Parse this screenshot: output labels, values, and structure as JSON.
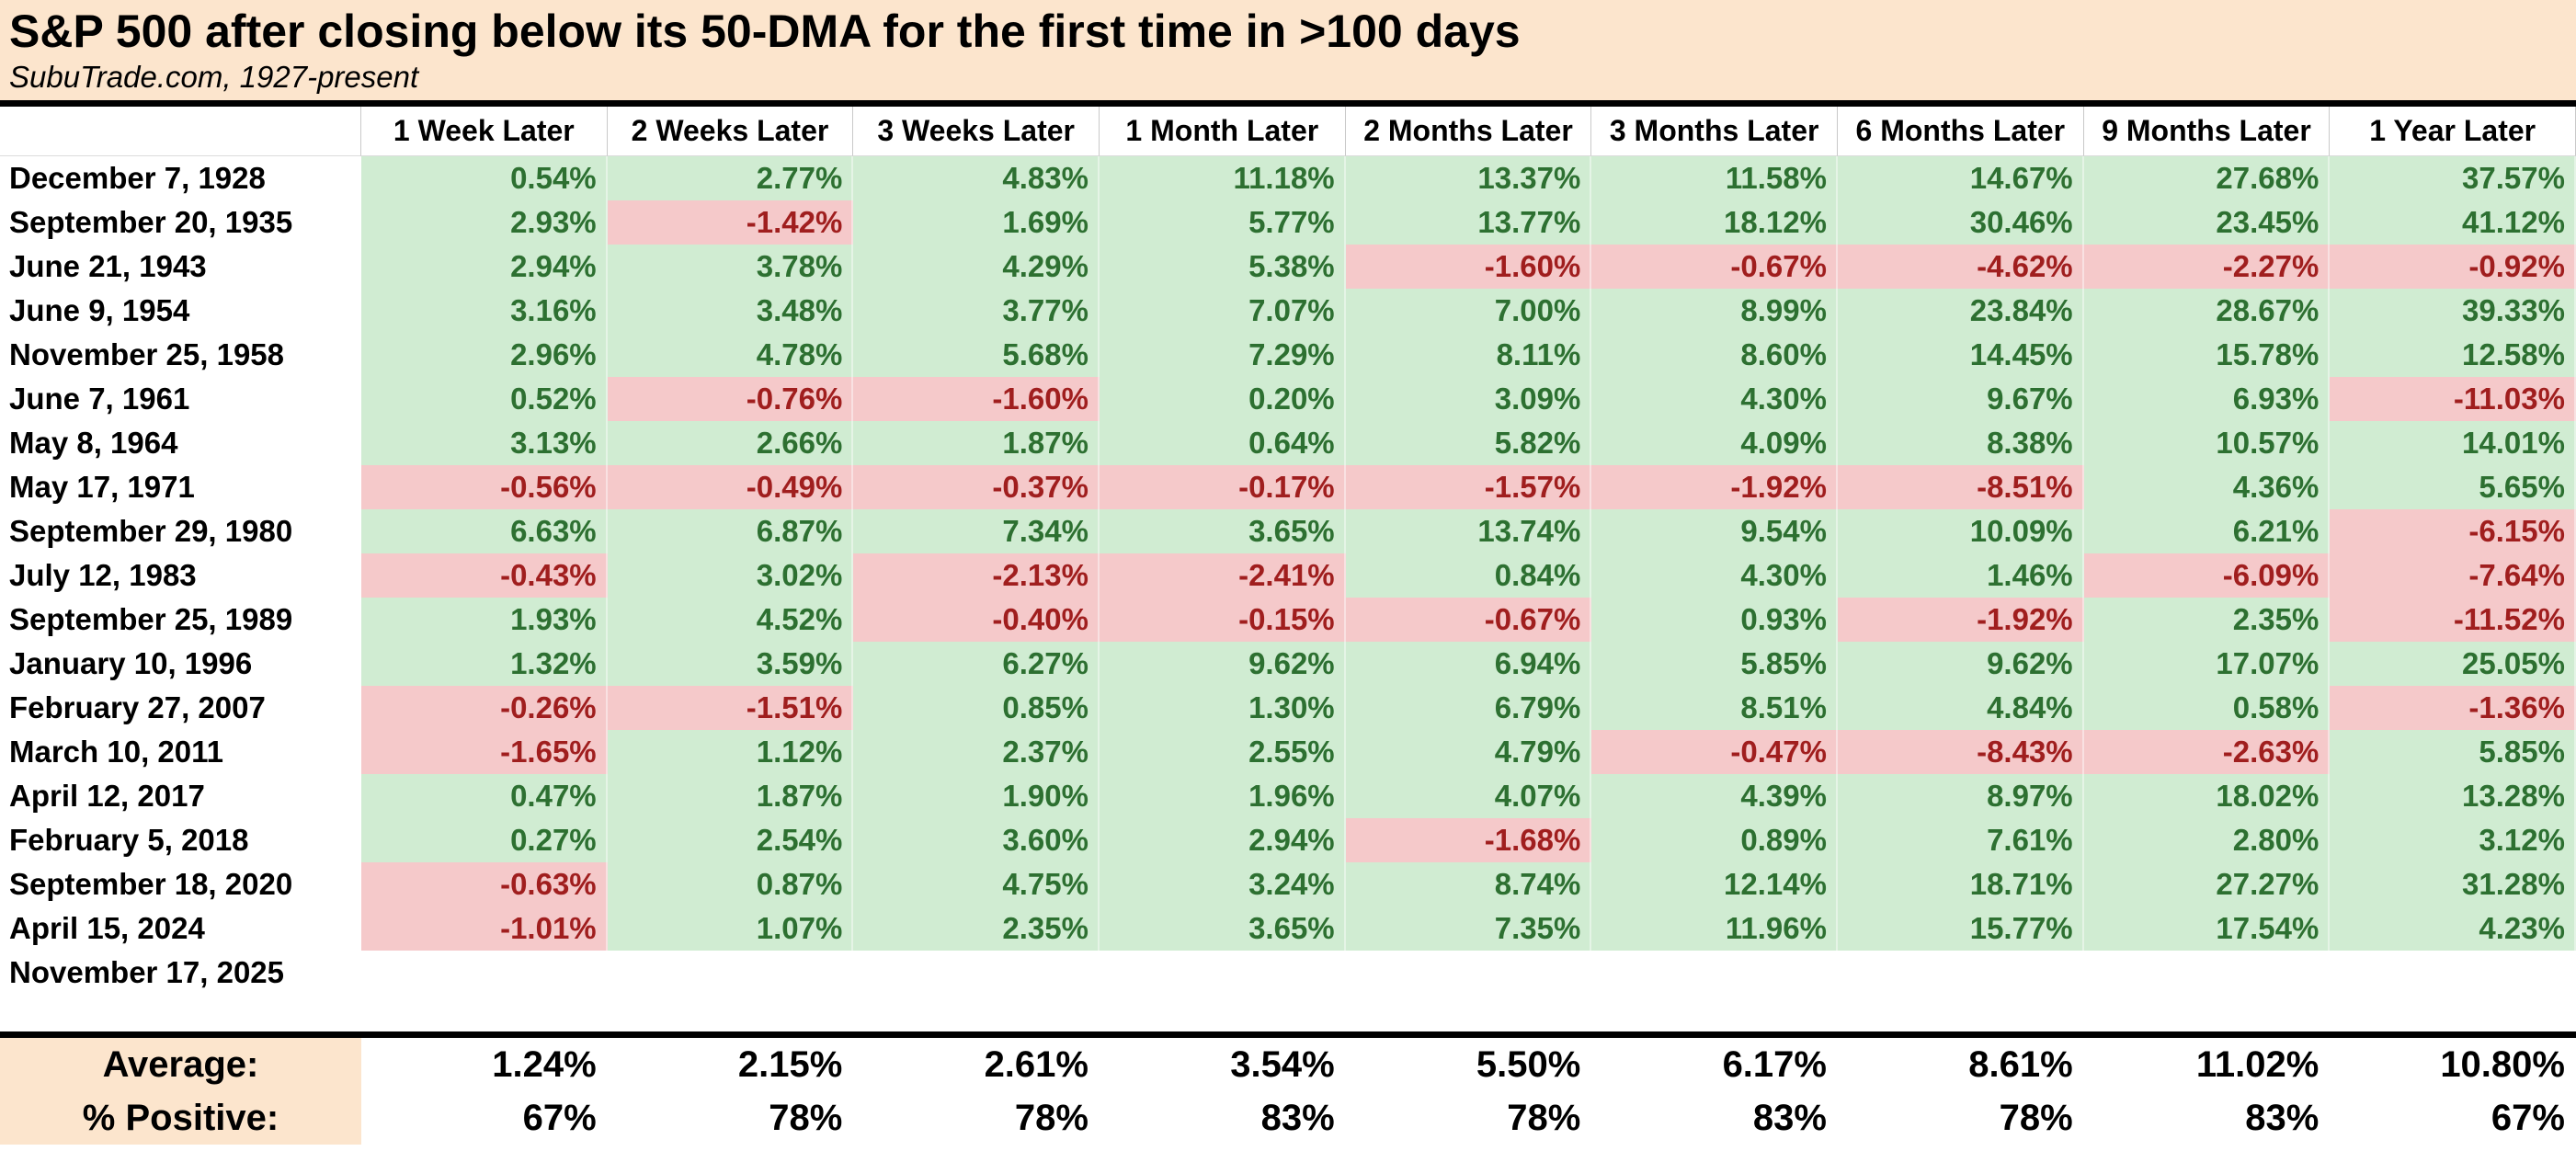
{
  "title": "S&P 500 after closing below its 50-DMA for the first time in >100 days",
  "subtitle": "SubuTrade.com, 1927-present",
  "colors": {
    "title_band_bg": "#fce5cd",
    "positive_bg": "#d0ecd2",
    "positive_text": "#2d7031",
    "negative_bg": "#f5c9ca",
    "negative_text": "#a01e1e",
    "summary_label_bg": "#fce5cd",
    "header_gridline": "#c9c9c9",
    "divider": "#000000"
  },
  "table": {
    "date_header": "",
    "columns": [
      "1 Week Later",
      "2 Weeks Later",
      "3 Weeks Later",
      "1 Month Later",
      "2 Months Later",
      "3 Months Later",
      "6 Months Later",
      "9 Months Later",
      "1 Year Later"
    ],
    "rows": [
      {
        "date": "December 7, 1928",
        "cells": [
          "0.54%",
          "2.77%",
          "4.83%",
          "11.18%",
          "13.37%",
          "11.58%",
          "14.67%",
          "27.68%",
          "37.57%"
        ]
      },
      {
        "date": "September 20, 1935",
        "cells": [
          "2.93%",
          "-1.42%",
          "1.69%",
          "5.77%",
          "13.77%",
          "18.12%",
          "30.46%",
          "23.45%",
          "41.12%"
        ]
      },
      {
        "date": "June 21, 1943",
        "cells": [
          "2.94%",
          "3.78%",
          "4.29%",
          "5.38%",
          "-1.60%",
          "-0.67%",
          "-4.62%",
          "-2.27%",
          "-0.92%"
        ]
      },
      {
        "date": "June 9, 1954",
        "cells": [
          "3.16%",
          "3.48%",
          "3.77%",
          "7.07%",
          "7.00%",
          "8.99%",
          "23.84%",
          "28.67%",
          "39.33%"
        ]
      },
      {
        "date": "November 25, 1958",
        "cells": [
          "2.96%",
          "4.78%",
          "5.68%",
          "7.29%",
          "8.11%",
          "8.60%",
          "14.45%",
          "15.78%",
          "12.58%"
        ]
      },
      {
        "date": "June 7, 1961",
        "cells": [
          "0.52%",
          "-0.76%",
          "-1.60%",
          "0.20%",
          "3.09%",
          "4.30%",
          "9.67%",
          "6.93%",
          "-11.03%"
        ]
      },
      {
        "date": "May 8, 1964",
        "cells": [
          "3.13%",
          "2.66%",
          "1.87%",
          "0.64%",
          "5.82%",
          "4.09%",
          "8.38%",
          "10.57%",
          "14.01%"
        ]
      },
      {
        "date": "May 17, 1971",
        "cells": [
          "-0.56%",
          "-0.49%",
          "-0.37%",
          "-0.17%",
          "-1.57%",
          "-1.92%",
          "-8.51%",
          "4.36%",
          "5.65%"
        ]
      },
      {
        "date": "September 29, 1980",
        "cells": [
          "6.63%",
          "6.87%",
          "7.34%",
          "3.65%",
          "13.74%",
          "9.54%",
          "10.09%",
          "6.21%",
          "-6.15%"
        ]
      },
      {
        "date": "July 12, 1983",
        "cells": [
          "-0.43%",
          "3.02%",
          "-2.13%",
          "-2.41%",
          "0.84%",
          "4.30%",
          "1.46%",
          "-6.09%",
          "-7.64%"
        ]
      },
      {
        "date": "September 25, 1989",
        "cells": [
          "1.93%",
          "4.52%",
          "-0.40%",
          "-0.15%",
          "-0.67%",
          "0.93%",
          "-1.92%",
          "2.35%",
          "-11.52%"
        ]
      },
      {
        "date": "January 10, 1996",
        "cells": [
          "1.32%",
          "3.59%",
          "6.27%",
          "9.62%",
          "6.94%",
          "5.85%",
          "9.62%",
          "17.07%",
          "25.05%"
        ]
      },
      {
        "date": "February 27, 2007",
        "cells": [
          "-0.26%",
          "-1.51%",
          "0.85%",
          "1.30%",
          "6.79%",
          "8.51%",
          "4.84%",
          "0.58%",
          "-1.36%"
        ]
      },
      {
        "date": "March 10, 2011",
        "cells": [
          "-1.65%",
          "1.12%",
          "2.37%",
          "2.55%",
          "4.79%",
          "-0.47%",
          "-8.43%",
          "-2.63%",
          "5.85%"
        ]
      },
      {
        "date": "April 12, 2017",
        "cells": [
          "0.47%",
          "1.87%",
          "1.90%",
          "1.96%",
          "4.07%",
          "4.39%",
          "8.97%",
          "18.02%",
          "13.28%"
        ]
      },
      {
        "date": "February 5, 2018",
        "cells": [
          "0.27%",
          "2.54%",
          "3.60%",
          "2.94%",
          "-1.68%",
          "0.89%",
          "7.61%",
          "2.80%",
          "3.12%"
        ]
      },
      {
        "date": "September 18, 2020",
        "cells": [
          "-0.63%",
          "0.87%",
          "4.75%",
          "3.24%",
          "8.74%",
          "12.14%",
          "18.71%",
          "27.27%",
          "31.28%"
        ]
      },
      {
        "date": "April 15, 2024",
        "cells": [
          "-1.01%",
          "1.07%",
          "2.35%",
          "3.65%",
          "7.35%",
          "11.96%",
          "15.77%",
          "17.54%",
          "4.23%"
        ]
      },
      {
        "date": "November 17, 2025",
        "cells": [
          "",
          "",
          "",
          "",
          "",
          "",
          "",
          "",
          ""
        ]
      }
    ],
    "summary": [
      {
        "label": "Average:",
        "cells": [
          "1.24%",
          "2.15%",
          "2.61%",
          "3.54%",
          "5.50%",
          "6.17%",
          "8.61%",
          "11.02%",
          "10.80%"
        ]
      },
      {
        "label": "% Positive:",
        "cells": [
          "67%",
          "78%",
          "78%",
          "83%",
          "78%",
          "83%",
          "78%",
          "83%",
          "67%"
        ]
      }
    ]
  },
  "chart_data": {
    "type": "table",
    "title": "S&P 500 after closing below its 50-DMA for the first time in >100 days",
    "subtitle": "SubuTrade.com, 1927-present",
    "columns": [
      "1 Week Later",
      "2 Weeks Later",
      "3 Weeks Later",
      "1 Month Later",
      "2 Months Later",
      "3 Months Later",
      "6 Months Later",
      "9 Months Later",
      "1 Year Later"
    ],
    "row_dates": [
      "December 7, 1928",
      "September 20, 1935",
      "June 21, 1943",
      "June 9, 1954",
      "November 25, 1958",
      "June 7, 1961",
      "May 8, 1964",
      "May 17, 1971",
      "September 29, 1980",
      "July 12, 1983",
      "September 25, 1989",
      "January 10, 1996",
      "February 27, 2007",
      "March 10, 2011",
      "April 12, 2017",
      "February 5, 2018",
      "September 18, 2020",
      "April 15, 2024",
      "November 17, 2025"
    ],
    "values_percent": [
      [
        0.54,
        2.77,
        4.83,
        11.18,
        13.37,
        11.58,
        14.67,
        27.68,
        37.57
      ],
      [
        2.93,
        -1.42,
        1.69,
        5.77,
        13.77,
        18.12,
        30.46,
        23.45,
        41.12
      ],
      [
        2.94,
        3.78,
        4.29,
        5.38,
        -1.6,
        -0.67,
        -4.62,
        -2.27,
        -0.92
      ],
      [
        3.16,
        3.48,
        3.77,
        7.07,
        7.0,
        8.99,
        23.84,
        28.67,
        39.33
      ],
      [
        2.96,
        4.78,
        5.68,
        7.29,
        8.11,
        8.6,
        14.45,
        15.78,
        12.58
      ],
      [
        0.52,
        -0.76,
        -1.6,
        0.2,
        3.09,
        4.3,
        9.67,
        6.93,
        -11.03
      ],
      [
        3.13,
        2.66,
        1.87,
        0.64,
        5.82,
        4.09,
        8.38,
        10.57,
        14.01
      ],
      [
        -0.56,
        -0.49,
        -0.37,
        -0.17,
        -1.57,
        -1.92,
        -8.51,
        4.36,
        5.65
      ],
      [
        6.63,
        6.87,
        7.34,
        3.65,
        13.74,
        9.54,
        10.09,
        6.21,
        -6.15
      ],
      [
        -0.43,
        3.02,
        -2.13,
        -2.41,
        0.84,
        4.3,
        1.46,
        -6.09,
        -7.64
      ],
      [
        1.93,
        4.52,
        -0.4,
        -0.15,
        -0.67,
        0.93,
        -1.92,
        2.35,
        -11.52
      ],
      [
        1.32,
        3.59,
        6.27,
        9.62,
        6.94,
        5.85,
        9.62,
        17.07,
        25.05
      ],
      [
        -0.26,
        -1.51,
        0.85,
        1.3,
        6.79,
        8.51,
        4.84,
        0.58,
        -1.36
      ],
      [
        -1.65,
        1.12,
        2.37,
        2.55,
        4.79,
        -0.47,
        -8.43,
        -2.63,
        5.85
      ],
      [
        0.47,
        1.87,
        1.9,
        1.96,
        4.07,
        4.39,
        8.97,
        18.02,
        13.28
      ],
      [
        0.27,
        2.54,
        3.6,
        2.94,
        -1.68,
        0.89,
        7.61,
        2.8,
        3.12
      ],
      [
        -0.63,
        0.87,
        4.75,
        3.24,
        8.74,
        12.14,
        18.71,
        27.27,
        31.28
      ],
      [
        -1.01,
        1.07,
        2.35,
        3.65,
        7.35,
        11.96,
        15.77,
        17.54,
        4.23
      ],
      []
    ],
    "average_percent": [
      1.24,
      2.15,
      2.61,
      3.54,
      5.5,
      6.17,
      8.61,
      11.02,
      10.8
    ],
    "percent_positive": [
      67,
      78,
      78,
      83,
      78,
      83,
      78,
      83,
      67
    ],
    "legend": "green = positive return, pink = negative return"
  }
}
